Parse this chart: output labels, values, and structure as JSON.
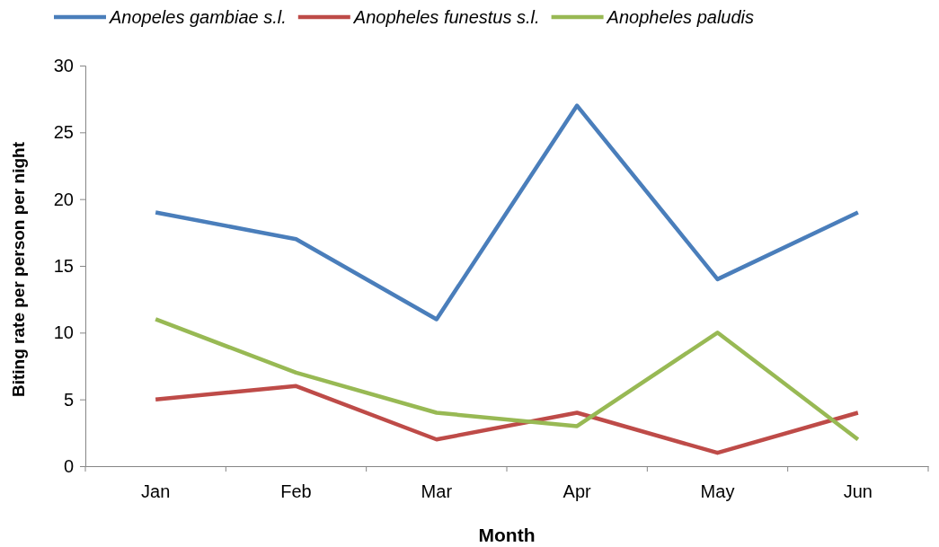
{
  "chart_data": {
    "type": "line",
    "xlabel": "Month",
    "ylabel": "Biting rate per person per night",
    "categories": [
      "Jan",
      "Feb",
      "Mar",
      "Apr",
      "May",
      "Jun"
    ],
    "series": [
      {
        "name": "Anopeles gambiae s.l.",
        "color": "#4a7ebb",
        "values": [
          19,
          17,
          11,
          27,
          14,
          19
        ]
      },
      {
        "name": "Anopheles funestus s.l.",
        "color": "#be4b48",
        "values": [
          5,
          6,
          2,
          4,
          1,
          4
        ]
      },
      {
        "name": "Anopheles paludis",
        "color": "#98b954",
        "values": [
          11,
          7,
          4,
          3,
          10,
          2
        ]
      }
    ],
    "ylim": [
      0,
      30
    ],
    "yticks": [
      0,
      5,
      10,
      15,
      20,
      25,
      30
    ],
    "grid": false,
    "legend": "top",
    "marker": "none",
    "line_style": "solid"
  }
}
